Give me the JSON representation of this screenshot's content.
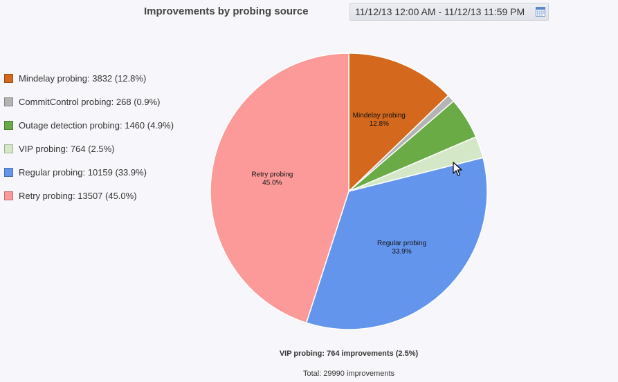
{
  "header": {
    "title": "Improvements by probing source",
    "date_range": "11/12/13 12:00 AM - 11/12/13 11:59 PM",
    "calendar_icon": "calendar-icon"
  },
  "legend": [
    {
      "text": "Mindelay probing: 3832 (12.8%)",
      "color": "#d4691e"
    },
    {
      "text": "CommitControl probing: 268 (0.9%)",
      "color": "#b4b4b4"
    },
    {
      "text": "Outage detection probing: 1460 (4.9%)",
      "color": "#6aab46"
    },
    {
      "text": "VIP probing: 764 (2.5%)",
      "color": "#d4e8c8"
    },
    {
      "text": "Regular probing: 10159 (33.9%)",
      "color": "#6495ec"
    },
    {
      "text": "Retry probing: 13507 (45.0%)",
      "color": "#fc9a9a"
    }
  ],
  "chart_data": {
    "type": "pie",
    "title": "Improvements by probing source",
    "slices": [
      {
        "name": "Mindelay probing",
        "value": 3832,
        "percent": 12.8,
        "color": "#d4691e",
        "label": "Mindelay probing",
        "label_pct": "12.8%",
        "show_label": true
      },
      {
        "name": "CommitControl probing",
        "value": 268,
        "percent": 0.9,
        "color": "#b4b4b4",
        "show_label": false
      },
      {
        "name": "Outage detection probing",
        "value": 1460,
        "percent": 4.9,
        "color": "#6aab46",
        "show_label": false
      },
      {
        "name": "VIP probing",
        "value": 764,
        "percent": 2.5,
        "color": "#d4e8c8",
        "show_label": false
      },
      {
        "name": "Regular probing",
        "value": 10159,
        "percent": 33.9,
        "color": "#6495ec",
        "label": "Regular probing",
        "label_pct": "33.9%",
        "show_label": true
      },
      {
        "name": "Retry probing",
        "value": 13507,
        "percent": 45.0,
        "color": "#fc9a9a",
        "label": "Retry probing",
        "label_pct": "45.0%",
        "show_label": true
      }
    ],
    "legend_position": "left"
  },
  "footer": {
    "hover_info": "VIP probing: 764 improvements (2.5%)",
    "total": "Total: 29990 improvements"
  }
}
